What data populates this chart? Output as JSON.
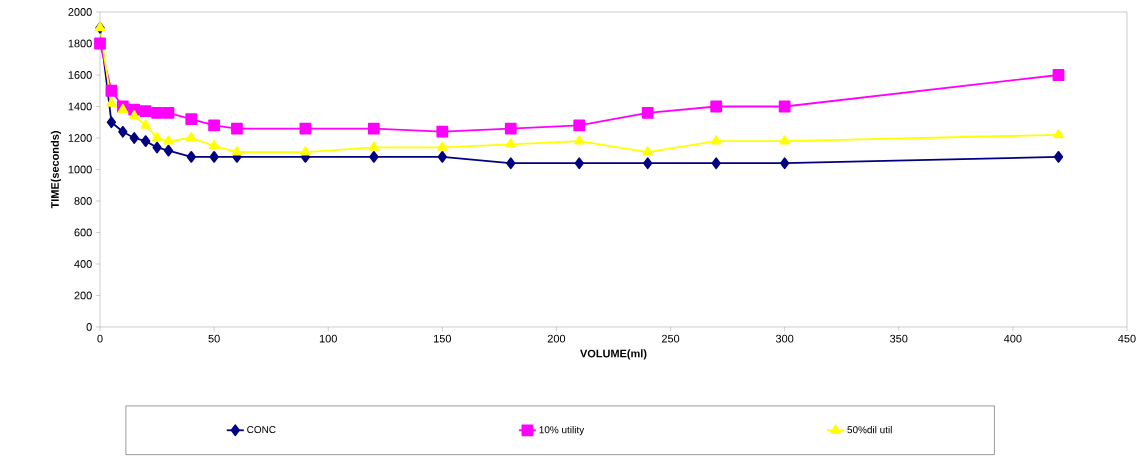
{
  "chart_data": {
    "type": "line",
    "xlabel": "VOLUME(ml)",
    "ylabel": "TIME(seconds)",
    "x": [
      0,
      5,
      10,
      15,
      20,
      25,
      30,
      40,
      50,
      60,
      90,
      120,
      150,
      180,
      210,
      240,
      270,
      300,
      420
    ],
    "series": [
      {
        "name": "CONC",
        "color": "#000080",
        "marker": "diamond",
        "values": [
          1900,
          1300,
          1240,
          1200,
          1180,
          1140,
          1120,
          1080,
          1080,
          1080,
          1080,
          1080,
          1080,
          1040,
          1040,
          1040,
          1040,
          1040,
          1080
        ]
      },
      {
        "name": "10% utility",
        "color": "#ff00ff",
        "marker": "square",
        "values": [
          1800,
          1500,
          1400,
          1380,
          1370,
          1360,
          1360,
          1320,
          1280,
          1260,
          1260,
          1260,
          1240,
          1260,
          1280,
          1360,
          1400,
          1400,
          1600
        ]
      },
      {
        "name": "50%dil util",
        "color": "#ffff00",
        "marker": "triangle",
        "values": [
          1900,
          1420,
          1380,
          1340,
          1280,
          1200,
          1180,
          1200,
          1150,
          1110,
          1110,
          1140,
          1140,
          1160,
          1180,
          1110,
          1180,
          1180,
          1220
        ]
      }
    ],
    "xlim": [
      0,
      450
    ],
    "xticks": [
      0,
      50,
      100,
      150,
      200,
      250,
      300,
      350,
      400,
      450
    ],
    "ylim": [
      0,
      2000
    ],
    "yticks": [
      0,
      200,
      400,
      600,
      800,
      1000,
      1200,
      1400,
      1600,
      1800,
      2000
    ],
    "grid": false,
    "legend": "bottom",
    "line_style": "solid"
  }
}
